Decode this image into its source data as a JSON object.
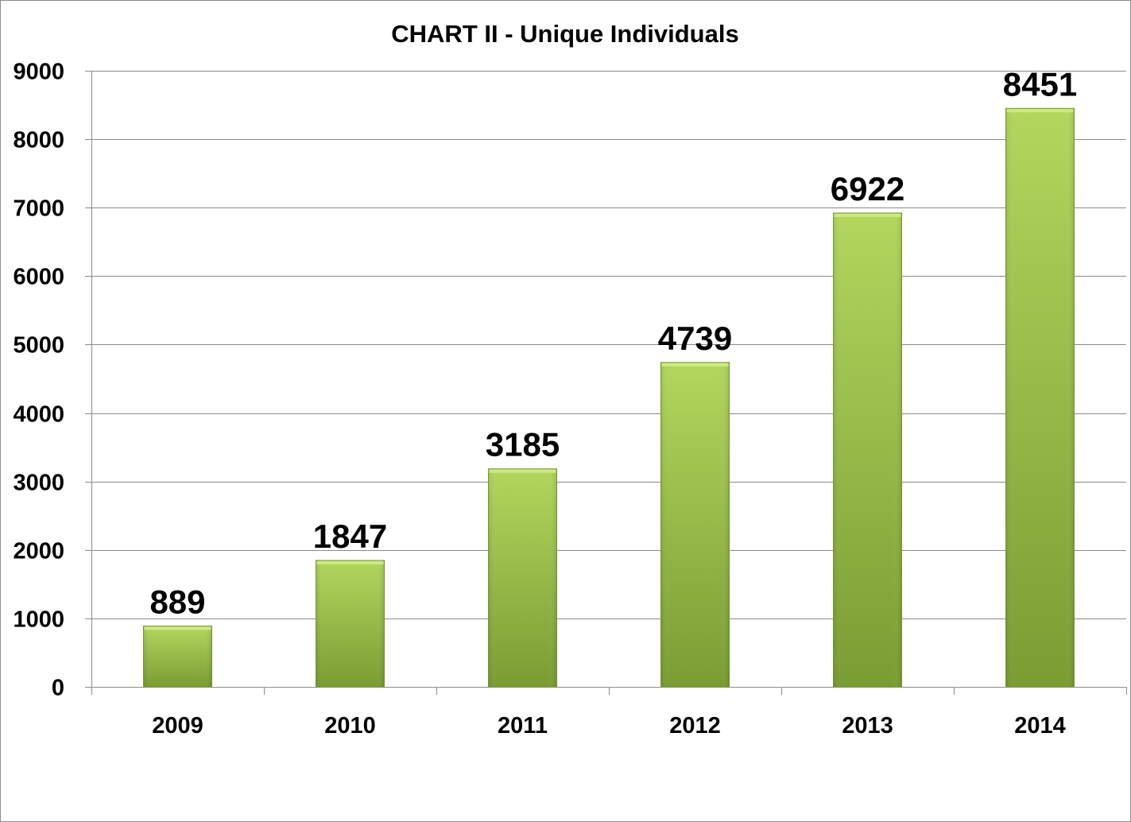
{
  "chart_data": {
    "type": "bar",
    "title": "CHART II - Unique Individuals",
    "xlabel": "",
    "ylabel": "",
    "categories": [
      "2009",
      "2010",
      "2011",
      "2012",
      "2013",
      "2014"
    ],
    "values": [
      889,
      1847,
      3185,
      4739,
      6922,
      8451
    ],
    "data_labels": [
      "889",
      "1847",
      "3185",
      "4739",
      "6922",
      "8451"
    ],
    "ylim": [
      0,
      9000
    ],
    "yticks": [
      0,
      1000,
      2000,
      3000,
      4000,
      5000,
      6000,
      7000,
      8000,
      9000
    ],
    "ytick_labels": [
      "0",
      "1000",
      "2000",
      "3000",
      "4000",
      "5000",
      "6000",
      "7000",
      "8000",
      "9000"
    ],
    "grid": true,
    "legend": "none",
    "bar_color": "#8fb43f",
    "bar_color_light": "#b2d65e",
    "bar_color_dark": "#7a9c33",
    "gridline_color": "#8c8c8c"
  }
}
